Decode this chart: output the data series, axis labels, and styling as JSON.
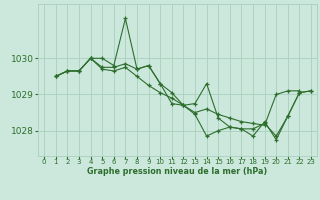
{
  "title": "Graphe pression niveau de la mer (hPa)",
  "bg_color": "#cce8dc",
  "grid_color": "#aacfbe",
  "line_color": "#2d6e2d",
  "xlim": [
    -0.5,
    23.5
  ],
  "ylim": [
    1027.3,
    1031.5
  ],
  "yticks": [
    1028,
    1029,
    1030
  ],
  "xticks": [
    0,
    1,
    2,
    3,
    4,
    5,
    6,
    7,
    8,
    9,
    10,
    11,
    12,
    13,
    14,
    15,
    16,
    17,
    18,
    19,
    20,
    21,
    22,
    23
  ],
  "series": [
    [
      null,
      1029.5,
      1029.65,
      1029.65,
      1030.0,
      1029.7,
      1029.65,
      1029.75,
      1029.5,
      1029.25,
      1029.05,
      1028.9,
      1028.7,
      1028.5,
      1028.6,
      1028.45,
      1028.35,
      1028.25,
      1028.2,
      1028.15,
      1029.0,
      1029.1,
      1029.1,
      null
    ],
    [
      null,
      1029.5,
      1029.65,
      1029.65,
      1030.0,
      1029.75,
      1029.75,
      1029.85,
      1029.7,
      1029.8,
      1029.3,
      1029.05,
      1028.7,
      1028.75,
      1029.3,
      1028.35,
      1028.1,
      1028.05,
      1028.05,
      1028.2,
      1027.85,
      1028.4,
      1029.05,
      1029.1
    ],
    [
      null,
      1029.5,
      1029.65,
      1029.65,
      1030.0,
      1030.0,
      1029.8,
      1031.1,
      1029.7,
      1029.8,
      1029.3,
      1028.75,
      1028.7,
      1028.45,
      1027.85,
      1028.0,
      1028.1,
      1028.05,
      1027.85,
      1028.25,
      1027.75,
      1028.4,
      1029.05,
      1029.1
    ]
  ],
  "series0_start": 1,
  "figsize": [
    3.2,
    2.0
  ],
  "dpi": 100
}
